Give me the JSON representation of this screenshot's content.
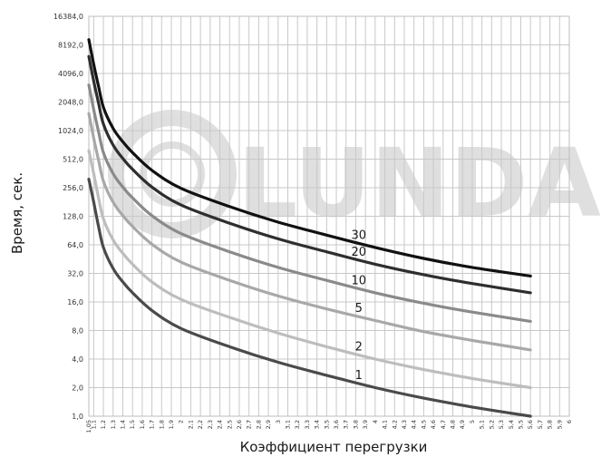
{
  "chart_data": {
    "type": "line",
    "xlabel": "Коэффициент перегрузки",
    "ylabel": "Время, сек.",
    "y_scale": "log2",
    "ylim": [
      1,
      16384
    ],
    "xlim": [
      1.05,
      6
    ],
    "y_ticks": [
      "1,0",
      "2,0",
      "4,0",
      "8,0",
      "16,0",
      "32,0",
      "64,0",
      "128,0",
      "256,0",
      "512,0",
      "1024,0",
      "2048,0",
      "4096,0",
      "8192,0",
      "16384,0"
    ],
    "x_ticks": [
      "1,05",
      "1,1",
      "1,2",
      "1,3",
      "1,4",
      "1,5",
      "1,6",
      "1,7",
      "1,8",
      "1,9",
      "2",
      "2,1",
      "2,2",
      "2,3",
      "2,4",
      "2,5",
      "2,6",
      "2,7",
      "2,8",
      "2,9",
      "3",
      "3,1",
      "3,2",
      "3,3",
      "3,4",
      "3,5",
      "3,6",
      "3,7",
      "3,8",
      "3,9",
      "4",
      "4,1",
      "4,2",
      "4,3",
      "4,4",
      "4,5",
      "4,6",
      "4,7",
      "4,8",
      "4,9",
      "5",
      "5,1",
      "5,2",
      "5,3",
      "5,4",
      "5,5",
      "5,6",
      "5,7",
      "5,8",
      "5,9",
      "6"
    ],
    "grid": true,
    "series": [
      {
        "name": "1",
        "color": "#4a4a4a",
        "x": [
          1.05,
          1.1,
          1.15,
          1.2,
          1.3,
          1.4,
          1.5,
          1.7,
          2.0,
          2.5,
          3.0,
          3.5,
          4.0,
          4.5,
          5.0,
          5.6
        ],
        "y": [
          315,
          180,
          100,
          60,
          36,
          26,
          20,
          13,
          8.4,
          5.4,
          3.7,
          2.7,
          2.0,
          1.55,
          1.25,
          1.0
        ]
      },
      {
        "name": "2",
        "color": "#bdbdbd",
        "x": [
          1.05,
          1.1,
          1.15,
          1.2,
          1.3,
          1.4,
          1.5,
          1.7,
          2.0,
          2.5,
          3.0,
          3.5,
          4.0,
          4.5,
          5.0,
          5.6
        ],
        "y": [
          630,
          360,
          200,
          120,
          72,
          52,
          40,
          26,
          17,
          11,
          7.5,
          5.4,
          4.0,
          3.1,
          2.5,
          2.0
        ]
      },
      {
        "name": "5",
        "color": "#a8a8a8",
        "x": [
          1.05,
          1.1,
          1.15,
          1.2,
          1.3,
          1.4,
          1.5,
          1.7,
          2.0,
          2.5,
          3.0,
          3.5,
          4.0,
          4.5,
          5.0,
          5.6
        ],
        "y": [
          1550,
          850,
          500,
          300,
          180,
          130,
          100,
          65,
          42,
          27,
          18.5,
          13.5,
          10.2,
          7.8,
          6.3,
          5.0
        ]
      },
      {
        "name": "10",
        "color": "#8a8a8a",
        "x": [
          1.05,
          1.1,
          1.15,
          1.2,
          1.3,
          1.4,
          1.5,
          1.7,
          2.0,
          2.5,
          3.0,
          3.5,
          4.0,
          4.5,
          5.0,
          5.6
        ],
        "y": [
          3100,
          1700,
          1000,
          600,
          360,
          260,
          200,
          130,
          84,
          54,
          37,
          27,
          20,
          15.5,
          12.5,
          10
        ]
      },
      {
        "name": "20",
        "color": "#2e2e2e",
        "x": [
          1.05,
          1.1,
          1.15,
          1.2,
          1.3,
          1.4,
          1.5,
          1.7,
          2.0,
          2.5,
          3.0,
          3.5,
          4.0,
          4.5,
          5.0,
          5.6
        ],
        "y": [
          6200,
          3400,
          2000,
          1200,
          720,
          520,
          400,
          260,
          168,
          108,
          74,
          54,
          40,
          31,
          25,
          20
        ]
      },
      {
        "name": "30",
        "color": "#111111",
        "x": [
          1.05,
          1.1,
          1.15,
          1.2,
          1.3,
          1.4,
          1.5,
          1.7,
          2.0,
          2.5,
          3.0,
          3.5,
          4.0,
          4.5,
          5.0,
          5.6
        ],
        "y": [
          9300,
          5100,
          3000,
          1800,
          1080,
          780,
          600,
          390,
          252,
          162,
          111,
          81,
          60,
          46,
          37,
          30
        ]
      }
    ]
  },
  "watermark": {
    "text": "LUNDA"
  }
}
